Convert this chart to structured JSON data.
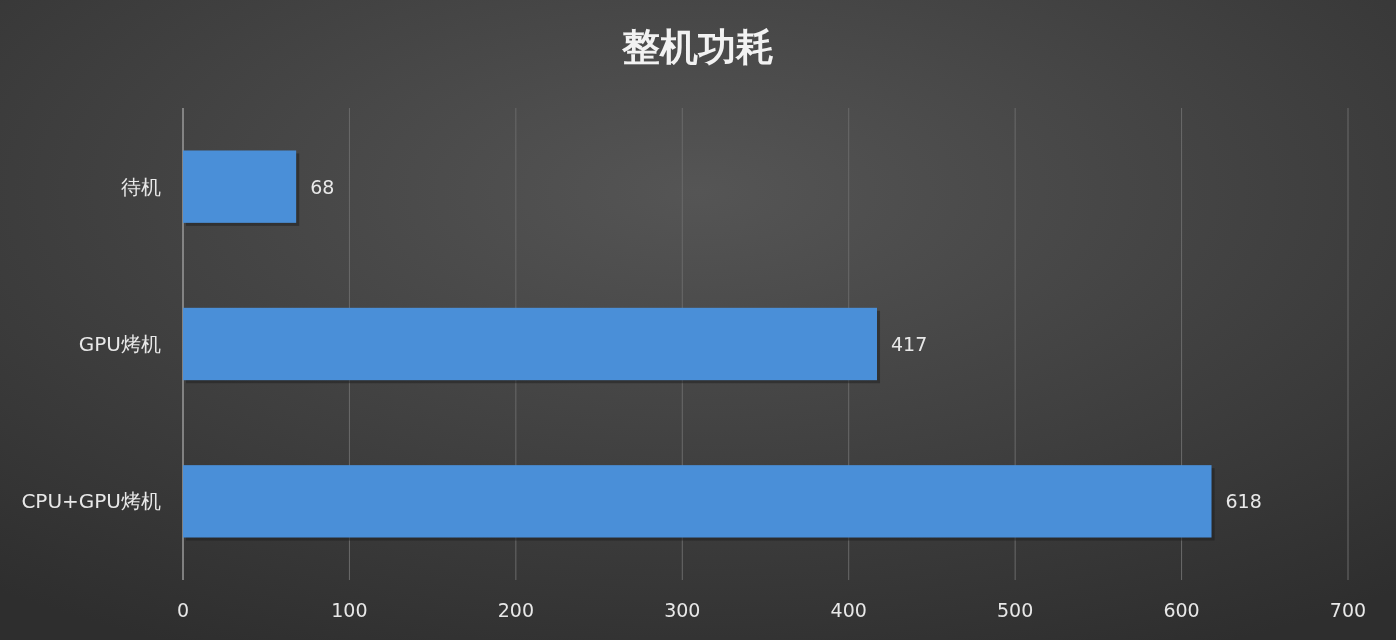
{
  "chart_data": {
    "type": "bar",
    "title": "整机功耗",
    "orientation": "horizontal",
    "categories": [
      "待机",
      "GPU烤机",
      "CPU+GPU烤机"
    ],
    "values": [
      68,
      417,
      618
    ],
    "color": "#4a8fd8",
    "xlim": [
      0,
      700
    ],
    "xticks": [
      0,
      100,
      200,
      300,
      400,
      500,
      600,
      700
    ],
    "grid": "x",
    "data_labels": true
  }
}
